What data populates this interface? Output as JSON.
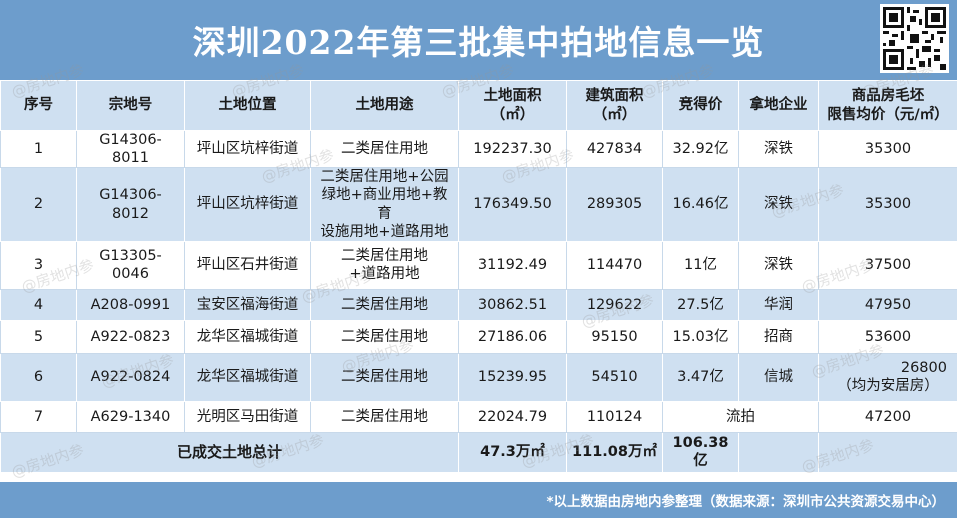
{
  "title": "深圳2022年第三批集中拍地信息一览",
  "headers": {
    "seq": "序号",
    "parcel": "宗地号",
    "location": "土地位置",
    "usage": "土地用途",
    "land_area_line1": "土地面积",
    "land_area_line2": "（㎡）",
    "build_area_line1": "建筑面积",
    "build_area_line2": "（㎡）",
    "price": "竞得价",
    "winner": "拿地企业",
    "sale_price_line1": "商品房毛坯",
    "sale_price_line2": "限售均价（元/㎡）"
  },
  "rows": [
    {
      "seq": "1",
      "parcel": "G14306-8011",
      "location": "坪山区坑梓街道",
      "usage": [
        "二类居住用地"
      ],
      "land_area": "192237.30",
      "build_area": "427834",
      "price": "32.92亿",
      "winner": "深铁",
      "sale_price": [
        "35300"
      ]
    },
    {
      "seq": "2",
      "parcel": "G14306-8012",
      "location": "坪山区坑梓街道",
      "usage": [
        "二类居住用地+公园",
        "绿地+商业用地+教育",
        "设施用地+道路用地"
      ],
      "land_area": "176349.50",
      "build_area": "289305",
      "price": "16.46亿",
      "winner": "深铁",
      "sale_price": [
        "35300"
      ]
    },
    {
      "seq": "3",
      "parcel": "G13305-0046",
      "location": "坪山区石井街道",
      "usage": [
        "二类居住用地",
        "+道路用地"
      ],
      "land_area": "31192.49",
      "build_area": "114470",
      "price": "11亿",
      "winner": "深铁",
      "sale_price": [
        "37500"
      ]
    },
    {
      "seq": "4",
      "parcel": "A208-0991",
      "location": "宝安区福海街道",
      "usage": [
        "二类居住用地"
      ],
      "land_area": "30862.51",
      "build_area": "129622",
      "price": "27.5亿",
      "winner": "华润",
      "sale_price": [
        "47950"
      ]
    },
    {
      "seq": "5",
      "parcel": "A922-0823",
      "location": "龙华区福城街道",
      "usage": [
        "二类居住用地"
      ],
      "land_area": "27186.06",
      "build_area": "95150",
      "price": "15.03亿",
      "winner": "招商",
      "sale_price": [
        "53600"
      ]
    },
    {
      "seq": "6",
      "parcel": "A922-0824",
      "location": "龙华区福城街道",
      "usage": [
        "二类居住用地"
      ],
      "land_area": "15239.95",
      "build_area": "54510",
      "price": "3.47亿",
      "winner": "信城",
      "sale_price": [
        "26800",
        "（均为安居房）"
      ]
    },
    {
      "seq": "7",
      "parcel": "A629-1340",
      "location": "光明区马田街道",
      "usage": [
        "二类居住用地"
      ],
      "land_area": "22024.79",
      "build_area": "110124",
      "price_winner_merged": "流拍",
      "sale_price": [
        "47200"
      ]
    }
  ],
  "total": {
    "label": "已成交土地总计",
    "land_area": "47.3万㎡",
    "build_area": "111.08万㎡",
    "price": "106.38亿"
  },
  "footer": "*以上数据由房地内参整理（数据来源：深圳市公共资源交易中心）",
  "watermark": "@房地内参",
  "colors": {
    "banner": "#6d9dcc",
    "row_shade": "#cfe0f1"
  }
}
